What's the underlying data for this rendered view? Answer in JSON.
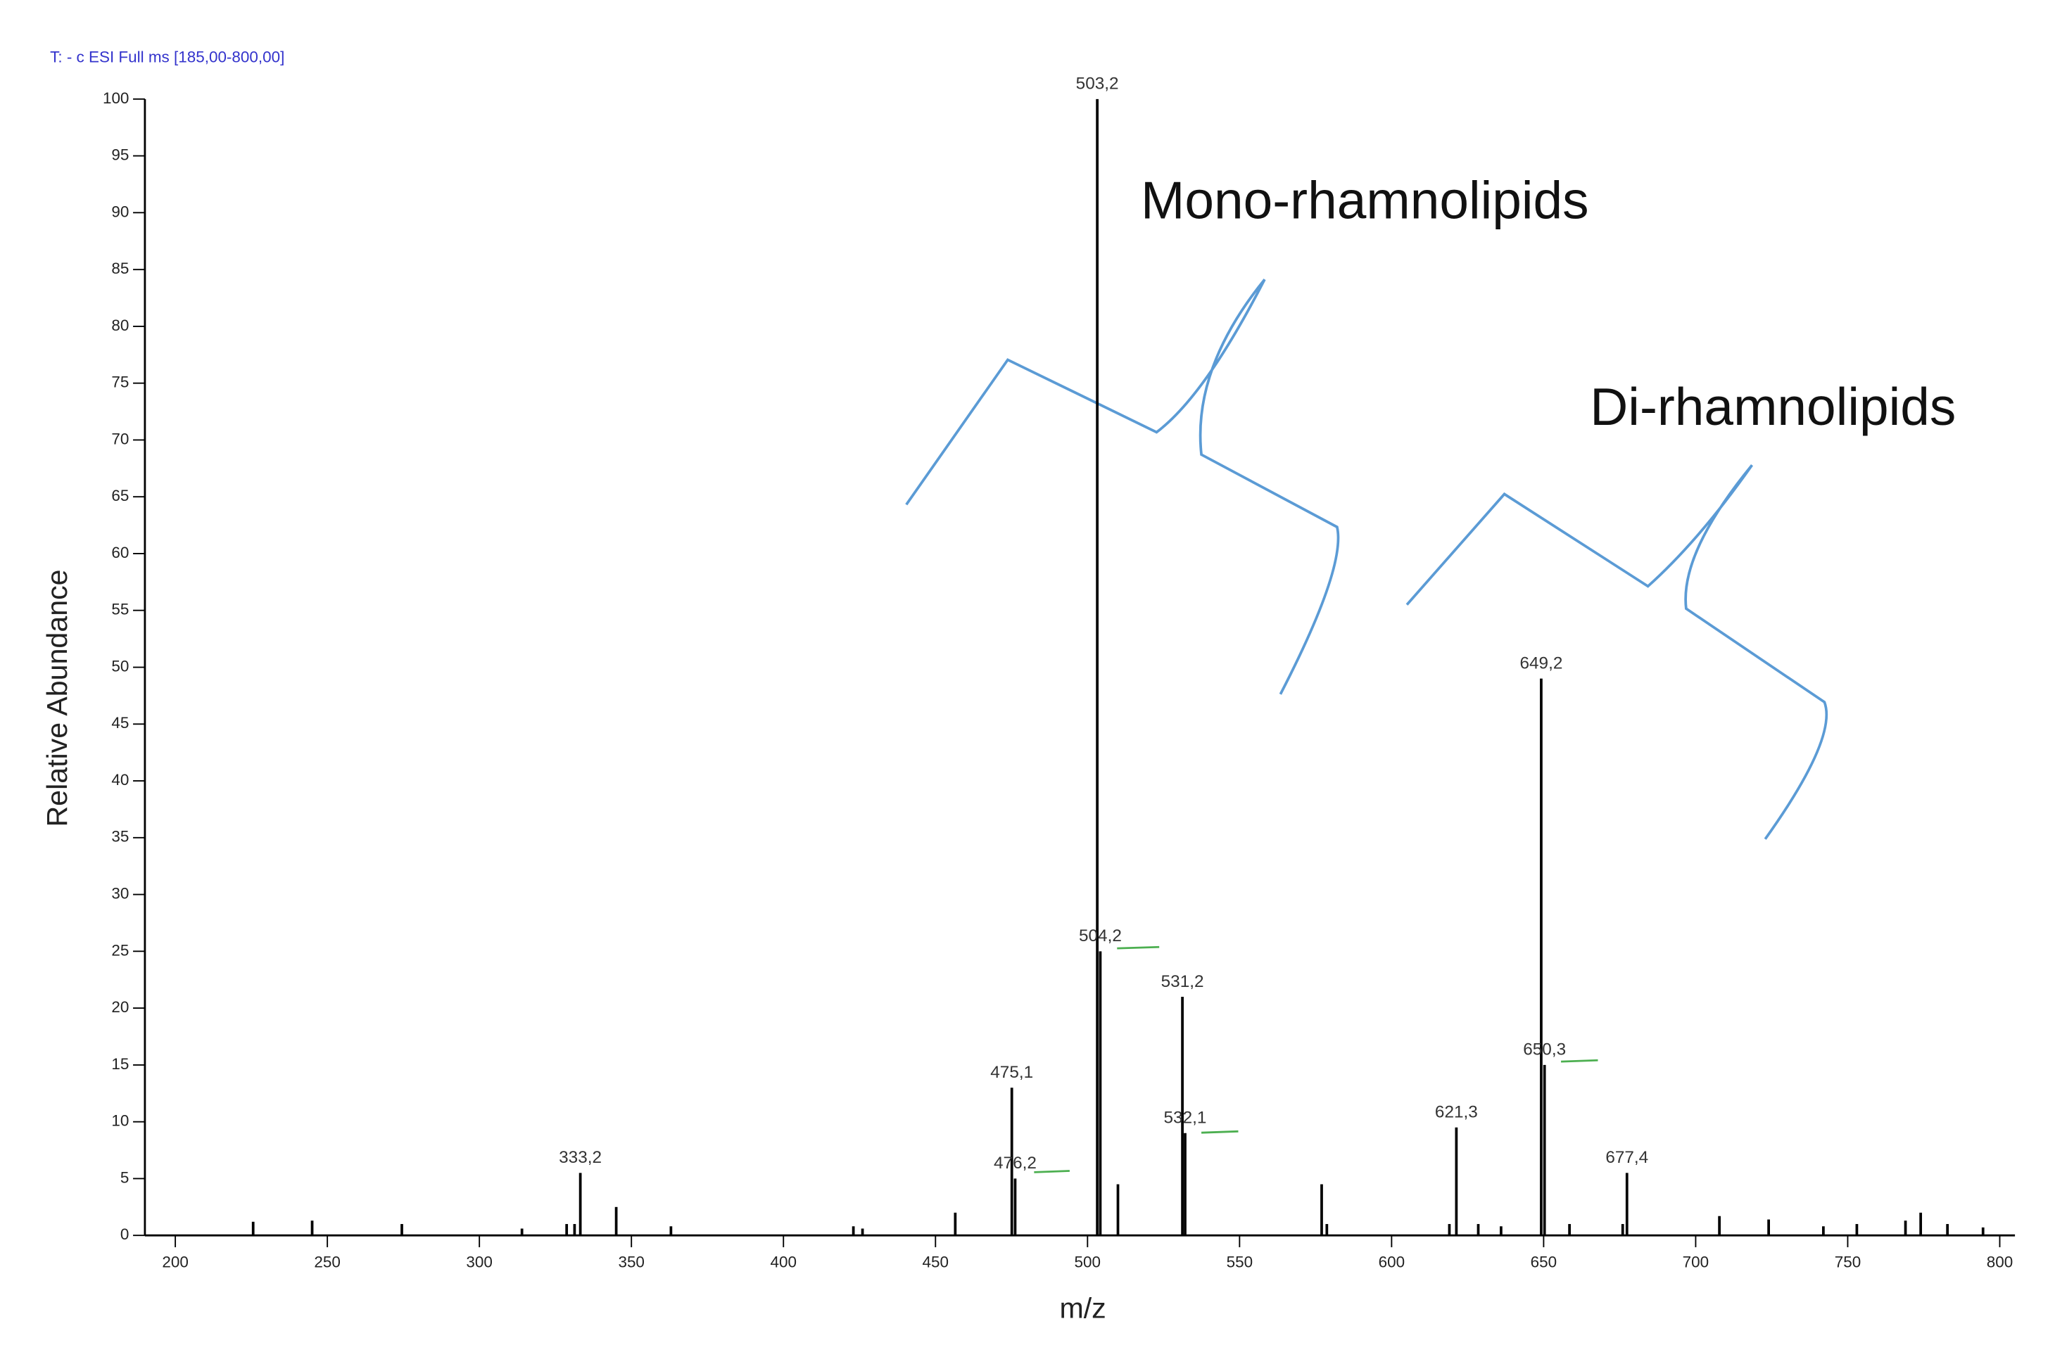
{
  "chart_data": {
    "type": "stem",
    "title": "T:  - c ESI Full ms [185,00-800,00]",
    "xlabel": "m/z",
    "ylabel": "Relative  Abundance",
    "annotations": [
      "Mono-rhamnolipids",
      "Di-rhamnolipids"
    ],
    "color": "#000000",
    "xlim": [
      190,
      805
    ],
    "ylim": [
      0,
      100
    ],
    "xticks": [
      200,
      250,
      300,
      350,
      400,
      450,
      500,
      550,
      600,
      650,
      700,
      750,
      800
    ],
    "yticks": [
      0,
      5,
      10,
      15,
      20,
      25,
      30,
      35,
      40,
      45,
      50,
      55,
      60,
      65,
      70,
      75,
      80,
      85,
      90,
      95,
      100
    ],
    "x": [
      225.6,
      245,
      274.5,
      314,
      328.7,
      331.3,
      333.2,
      345,
      363,
      423,
      426,
      456.5,
      475.1,
      476.2,
      503.2,
      504.2,
      510,
      531.2,
      532.1,
      577,
      578.7,
      619,
      621.3,
      628.5,
      636,
      649.2,
      650.3,
      658.5,
      676,
      677.4,
      707.8,
      724,
      742,
      753,
      769,
      774,
      782.8,
      794.5
    ],
    "values": [
      1.2,
      1.3,
      1,
      0.6,
      1,
      1,
      5.5,
      2.5,
      0.8,
      0.8,
      0.6,
      2,
      13,
      5,
      100,
      25,
      4.5,
      21,
      9,
      4.5,
      1,
      1,
      9.5,
      1,
      0.8,
      49,
      15,
      1,
      1,
      5.5,
      1.7,
      1.4,
      0.8,
      1,
      1.3,
      2,
      1,
      0.7
    ],
    "x_labels": [
      null,
      null,
      null,
      null,
      null,
      null,
      "333,2",
      null,
      null,
      null,
      null,
      null,
      "475,1",
      "476,2",
      "503,2",
      "504,2",
      null,
      "531,2",
      "532,1",
      null,
      null,
      null,
      "621,3",
      null,
      null,
      "649,2",
      "650,3",
      null,
      null,
      "677,4",
      null,
      null,
      null,
      null,
      null,
      null,
      null,
      null
    ]
  }
}
